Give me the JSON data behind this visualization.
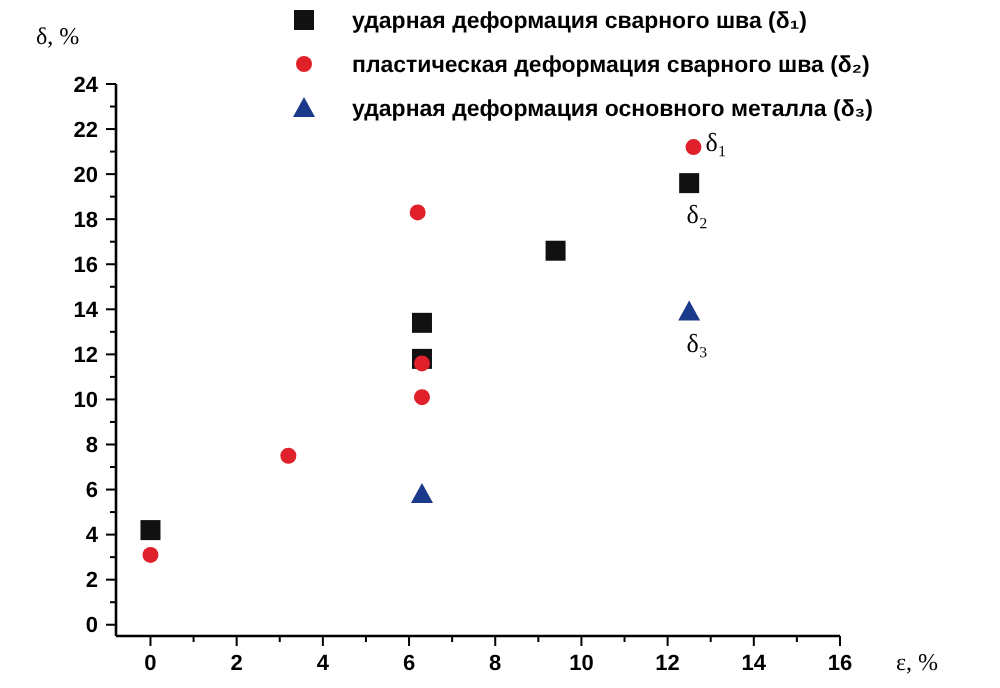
{
  "chart_data": {
    "type": "scatter",
    "xlabel": "ε, %",
    "ylabel": "δ, %",
    "legend": "top",
    "grid": false,
    "xlim": [
      -0.8,
      16
    ],
    "ylim": [
      -0.5,
      24
    ],
    "xticks": [
      0,
      {
        "value": 1,
        "label": null
      },
      2,
      {
        "value": 3,
        "label": null
      },
      4,
      {
        "value": 5,
        "label": null
      },
      6,
      {
        "value": 7,
        "label": null
      },
      8,
      {
        "value": 9,
        "label": null
      },
      10,
      {
        "value": 11,
        "label": null
      },
      12,
      {
        "value": 13,
        "label": null
      },
      14,
      {
        "value": 15,
        "label": null
      },
      16
    ],
    "yticks": [
      0,
      {
        "value": 1,
        "label": null
      },
      2,
      {
        "value": 3,
        "label": null
      },
      4,
      {
        "value": 5,
        "label": null
      },
      6,
      {
        "value": 7,
        "label": null
      },
      8,
      {
        "value": 9,
        "label": null
      },
      10,
      {
        "value": 11,
        "label": null
      },
      12,
      {
        "value": 13,
        "label": null
      },
      14,
      {
        "value": 15,
        "label": null
      },
      16,
      {
        "value": 17,
        "label": null
      },
      18,
      {
        "value": 19,
        "label": null
      },
      20,
      {
        "value": 21,
        "label": null
      },
      22,
      {
        "value": 23,
        "label": null
      },
      24
    ],
    "series": [
      {
        "name": "ударная деформация сварного шва (δ₁)",
        "color": "#111111",
        "marker": "square",
        "x": [
          0,
          6.3,
          6.3,
          9.4,
          12.5
        ],
        "values": [
          4.2,
          13.4,
          11.8,
          16.6,
          19.6
        ],
        "value_labels": [
          null,
          null,
          null,
          null,
          "δ₂"
        ]
      },
      {
        "name": "пластическая деформация сварного шва (δ₂)",
        "color": "#e0202a",
        "marker": "circle",
        "x": [
          0,
          3.2,
          6.2,
          6.3,
          6.3,
          12.6
        ],
        "values": [
          3.1,
          7.5,
          18.3,
          11.6,
          10.1,
          21.2
        ],
        "value_labels": [
          null,
          null,
          null,
          null,
          null,
          "δ₁"
        ]
      },
      {
        "name": "ударная деформация основного металла (δ₃)",
        "color": "#1c3a8c",
        "marker": "triangle",
        "x": [
          6.3,
          12.5
        ],
        "values": [
          5.8,
          13.9
        ],
        "value_labels": [
          null,
          "δ₃"
        ]
      }
    ]
  }
}
